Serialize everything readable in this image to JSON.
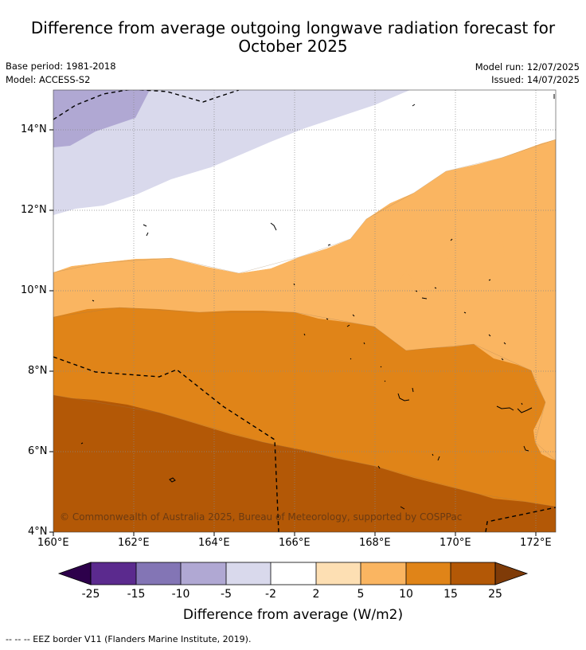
{
  "header": {
    "title_line1": "Difference from average outgoing longwave radiation forecast for",
    "title_line2": "October 2025",
    "base_period": "Base period: 1981-2018",
    "model": "Model: ACCESS-S2",
    "model_run": "Model run: 12/07/2025",
    "issued": "Issued: 14/07/2025"
  },
  "map": {
    "x_ticks": [
      "160°E",
      "162°E",
      "164°E",
      "166°E",
      "168°E",
      "170°E",
      "172°E"
    ],
    "y_ticks": [
      "14°N",
      "12°N",
      "10°N",
      "8°N",
      "6°N",
      "4°N"
    ],
    "copyright": "© Commonwealth of Australia 2025, Bureau of Meteorology, supported by COSPPac"
  },
  "colorbar": {
    "labels": [
      "-25",
      "-15",
      "-10",
      "-5",
      "-2",
      "2",
      "5",
      "10",
      "15",
      "25"
    ],
    "colors": [
      "#5b2a8e",
      "#8375b5",
      "#b0a8d3",
      "#d9d9ec",
      "#ffffff",
      "#fddfb3",
      "#fab561",
      "#e08418",
      "#b35806"
    ],
    "under_color": "#2d004b",
    "over_color": "#7f3b08",
    "title": "Difference from average (W/m2)"
  },
  "footer": {
    "legend": "--  --  -- EEZ border V11 (Flanders Marine Institute, 2019)."
  }
}
